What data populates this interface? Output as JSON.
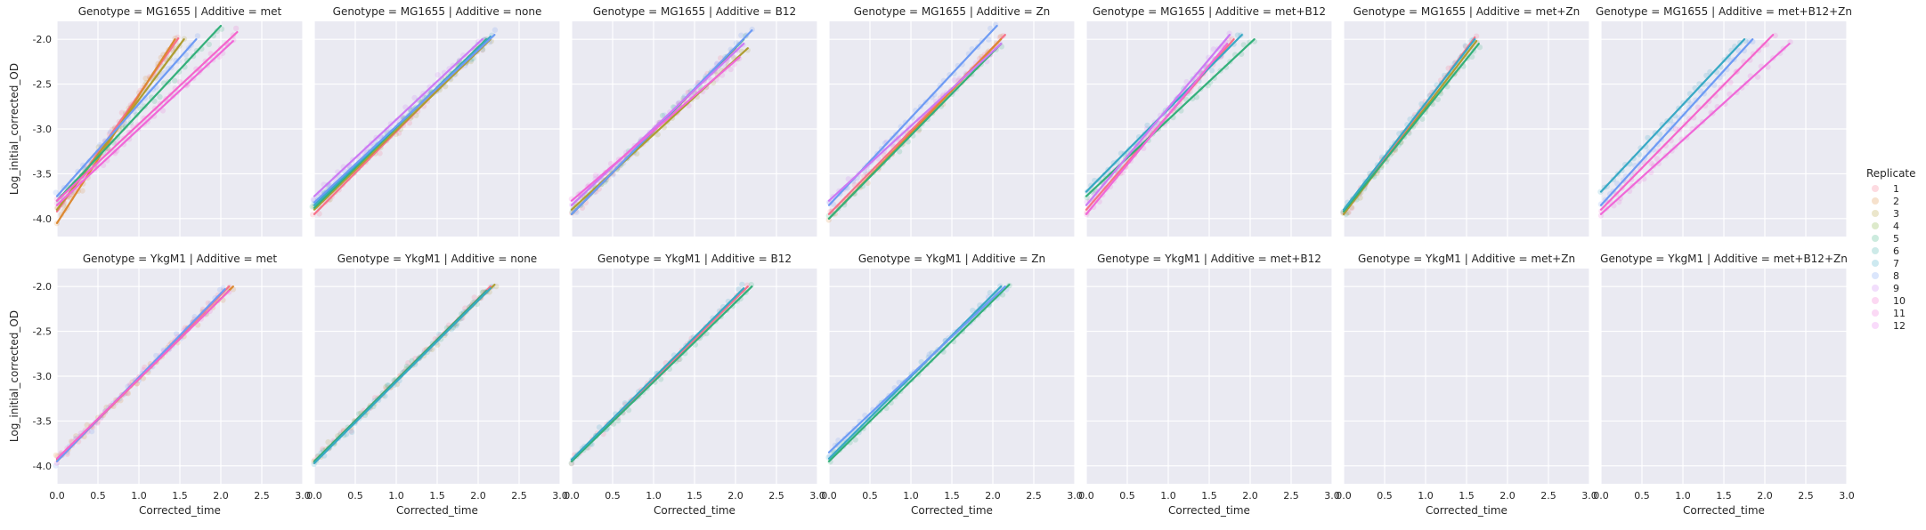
{
  "chart_data": {
    "type": "scatter",
    "xlabel": "Corrected_time",
    "ylabel": "Log_initial_corrected_OD",
    "xlim": [
      0,
      3
    ],
    "ylim": [
      -4.2,
      -1.8
    ],
    "xticks": [
      "0.0",
      "0.5",
      "1.0",
      "1.5",
      "2.0",
      "2.5",
      "3.0"
    ],
    "yticks": [
      "-2.0",
      "-2.5",
      "-3.0",
      "-3.5",
      "-4.0"
    ],
    "grid": true,
    "legend": {
      "title": "Replicate",
      "placement": "right",
      "entries": [
        "1",
        "2",
        "3",
        "4",
        "5",
        "6",
        "7",
        "8",
        "9",
        "10",
        "11",
        "12"
      ],
      "colors": [
        "#f77189",
        "#dc8932",
        "#ae9d31",
        "#77ab31",
        "#33b07a",
        "#36ada4",
        "#38a9c5",
        "#6e9bf4",
        "#cc7af4",
        "#f565cc",
        "#f068d8",
        "#e66ff0"
      ]
    },
    "panels": [
      {
        "title": "Genotype = MG1655 | Additive = met",
        "row": 0,
        "col": 0,
        "fits": [
          {
            "replicate": 1,
            "x": [
              0,
              1.48
            ],
            "y": [
              -3.92,
              -1.99
            ]
          },
          {
            "replicate": 2,
            "x": [
              0,
              1.44
            ],
            "y": [
              -4.05,
              -2.0
            ]
          },
          {
            "replicate": 3,
            "x": [
              0,
              1.55
            ],
            "y": [
              -3.9,
              -2.0
            ]
          },
          {
            "replicate": 5,
            "x": [
              0,
              2.0
            ],
            "y": [
              -3.8,
              -1.85
            ]
          },
          {
            "replicate": 8,
            "x": [
              0,
              1.7
            ],
            "y": [
              -3.75,
              -2.0
            ]
          },
          {
            "replicate": 10,
            "x": [
              0,
              2.2
            ],
            "y": [
              -3.8,
              -1.92
            ]
          },
          {
            "replicate": 11,
            "x": [
              0,
              2.15
            ],
            "y": [
              -3.85,
              -2.02
            ]
          }
        ]
      },
      {
        "title": "Genotype = MG1655 | Additive = none",
        "row": 0,
        "col": 1,
        "fits": [
          {
            "replicate": 1,
            "x": [
              0,
              2.1
            ],
            "y": [
              -3.95,
              -2.02
            ]
          },
          {
            "replicate": 3,
            "x": [
              0,
              2.15
            ],
            "y": [
              -3.9,
              -2.0
            ]
          },
          {
            "replicate": 5,
            "x": [
              0,
              2.1
            ],
            "y": [
              -3.88,
              -2.0
            ]
          },
          {
            "replicate": 7,
            "x": [
              0,
              2.15
            ],
            "y": [
              -3.85,
              -1.97
            ]
          },
          {
            "replicate": 8,
            "x": [
              0,
              2.2
            ],
            "y": [
              -3.82,
              -1.95
            ]
          },
          {
            "replicate": 9,
            "x": [
              0,
              2.05
            ],
            "y": [
              -3.75,
              -2.0
            ]
          }
        ]
      },
      {
        "title": "Genotype = MG1655 | Additive = B12",
        "row": 0,
        "col": 2,
        "fits": [
          {
            "replicate": 1,
            "x": [
              0,
              2.0
            ],
            "y": [
              -3.95,
              -2.1
            ]
          },
          {
            "replicate": 3,
            "x": [
              0,
              2.15
            ],
            "y": [
              -3.9,
              -2.1
            ]
          },
          {
            "replicate": 5,
            "x": [
              0,
              2.1
            ],
            "y": [
              -3.95,
              -2.0
            ]
          },
          {
            "replicate": 8,
            "x": [
              0,
              2.2
            ],
            "y": [
              -3.95,
              -1.9
            ]
          },
          {
            "replicate": 9,
            "x": [
              0,
              2.1
            ],
            "y": [
              -3.85,
              -2.05
            ]
          },
          {
            "replicate": 11,
            "x": [
              0,
              2.05
            ],
            "y": [
              -3.8,
              -2.2
            ]
          }
        ]
      },
      {
        "title": "Genotype = MG1655 | Additive = Zn",
        "row": 0,
        "col": 3,
        "fits": [
          {
            "replicate": 1,
            "x": [
              0,
              2.15
            ],
            "y": [
              -3.95,
              -1.95
            ]
          },
          {
            "replicate": 2,
            "x": [
              0,
              2.1
            ],
            "y": [
              -4.0,
              -2.0
            ]
          },
          {
            "replicate": 5,
            "x": [
              0,
              2.1
            ],
            "y": [
              -4.0,
              -2.05
            ]
          },
          {
            "replicate": 8,
            "x": [
              0,
              2.05
            ],
            "y": [
              -3.85,
              -1.85
            ]
          },
          {
            "replicate": 9,
            "x": [
              0,
              2.1
            ],
            "y": [
              -3.8,
              -2.05
            ]
          }
        ]
      },
      {
        "title": "Genotype = MG1655 | Additive = met+B12",
        "row": 0,
        "col": 4,
        "fits": [
          {
            "replicate": 1,
            "x": [
              0,
              1.8
            ],
            "y": [
              -3.9,
              -2.0
            ]
          },
          {
            "replicate": 5,
            "x": [
              0,
              2.05
            ],
            "y": [
              -3.75,
              -2.0
            ]
          },
          {
            "replicate": 7,
            "x": [
              0,
              1.9
            ],
            "y": [
              -3.7,
              -1.95
            ]
          },
          {
            "replicate": 9,
            "x": [
              0,
              1.75
            ],
            "y": [
              -3.85,
              -1.95
            ]
          },
          {
            "replicate": 11,
            "x": [
              0,
              1.72
            ],
            "y": [
              -3.95,
              -2.05
            ]
          }
        ]
      },
      {
        "title": "Genotype = MG1655 | Additive = met+Zn",
        "row": 0,
        "col": 5,
        "fits": [
          {
            "replicate": 1,
            "x": [
              0,
              1.6
            ],
            "y": [
              -3.95,
              -1.98
            ]
          },
          {
            "replicate": 3,
            "x": [
              0,
              1.62
            ],
            "y": [
              -3.95,
              -2.02
            ]
          },
          {
            "replicate": 5,
            "x": [
              0,
              1.65
            ],
            "y": [
              -3.92,
              -2.05
            ]
          },
          {
            "replicate": 7,
            "x": [
              0,
              1.6
            ],
            "y": [
              -3.9,
              -2.0
            ]
          }
        ]
      },
      {
        "title": "Genotype = MG1655 | Additive = met+B12+Zn",
        "row": 0,
        "col": 6,
        "fits": [
          {
            "replicate": 7,
            "x": [
              0,
              1.75
            ],
            "y": [
              -3.7,
              -2.0
            ]
          },
          {
            "replicate": 8,
            "x": [
              0,
              1.85
            ],
            "y": [
              -3.85,
              -2.0
            ]
          },
          {
            "replicate": 10,
            "x": [
              0,
              2.1
            ],
            "y": [
              -3.9,
              -1.95
            ]
          },
          {
            "replicate": 11,
            "x": [
              0,
              2.3
            ],
            "y": [
              -3.95,
              -2.05
            ]
          }
        ]
      },
      {
        "title": "Genotype = YkgM1 | Additive = met",
        "row": 1,
        "col": 0,
        "fits": [
          {
            "replicate": 1,
            "x": [
              0,
              2.1
            ],
            "y": [
              -3.95,
              -2.0
            ]
          },
          {
            "replicate": 2,
            "x": [
              0,
              2.15
            ],
            "y": [
              -3.93,
              -2.0
            ]
          },
          {
            "replicate": 8,
            "x": [
              0,
              2.05
            ],
            "y": [
              -3.95,
              -2.03
            ]
          },
          {
            "replicate": 10,
            "x": [
              0,
              2.1
            ],
            "y": [
              -3.92,
              -2.05
            ]
          }
        ]
      },
      {
        "title": "Genotype = YkgM1 | Additive = none",
        "row": 1,
        "col": 1,
        "fits": [
          {
            "replicate": 1,
            "x": [
              0,
              2.15
            ],
            "y": [
              -3.95,
              -2.0
            ]
          },
          {
            "replicate": 3,
            "x": [
              0,
              2.2
            ],
            "y": [
              -3.95,
              -1.98
            ]
          },
          {
            "replicate": 5,
            "x": [
              0,
              2.1
            ],
            "y": [
              -3.95,
              -2.05
            ]
          },
          {
            "replicate": 7,
            "x": [
              0,
              2.15
            ],
            "y": [
              -3.97,
              -2.02
            ]
          }
        ]
      },
      {
        "title": "Genotype = YkgM1 | Additive = B12",
        "row": 1,
        "col": 2,
        "fits": [
          {
            "replicate": 1,
            "x": [
              0,
              2.15
            ],
            "y": [
              -3.95,
              -2.0
            ]
          },
          {
            "replicate": 5,
            "x": [
              0,
              2.2
            ],
            "y": [
              -3.95,
              -2.0
            ]
          },
          {
            "replicate": 7,
            "x": [
              0,
              2.1
            ],
            "y": [
              -3.93,
              -2.02
            ]
          }
        ]
      },
      {
        "title": "Genotype = YkgM1 | Additive = Zn",
        "row": 1,
        "col": 3,
        "fits": [
          {
            "replicate": 5,
            "x": [
              0,
              2.2
            ],
            "y": [
              -3.95,
              -1.98
            ]
          },
          {
            "replicate": 7,
            "x": [
              0,
              2.1
            ],
            "y": [
              -3.92,
              -2.0
            ]
          },
          {
            "replicate": 8,
            "x": [
              0,
              2.15
            ],
            "y": [
              -3.85,
              -2.0
            ]
          }
        ]
      },
      {
        "title": "Genotype = YkgM1 | Additive = met+B12",
        "row": 1,
        "col": 4,
        "fits": []
      },
      {
        "title": "Genotype = YkgM1 | Additive = met+Zn",
        "row": 1,
        "col": 5,
        "fits": []
      },
      {
        "title": "Genotype = YkgM1 | Additive = met+B12+Zn",
        "row": 1,
        "col": 6,
        "fits": []
      }
    ]
  }
}
